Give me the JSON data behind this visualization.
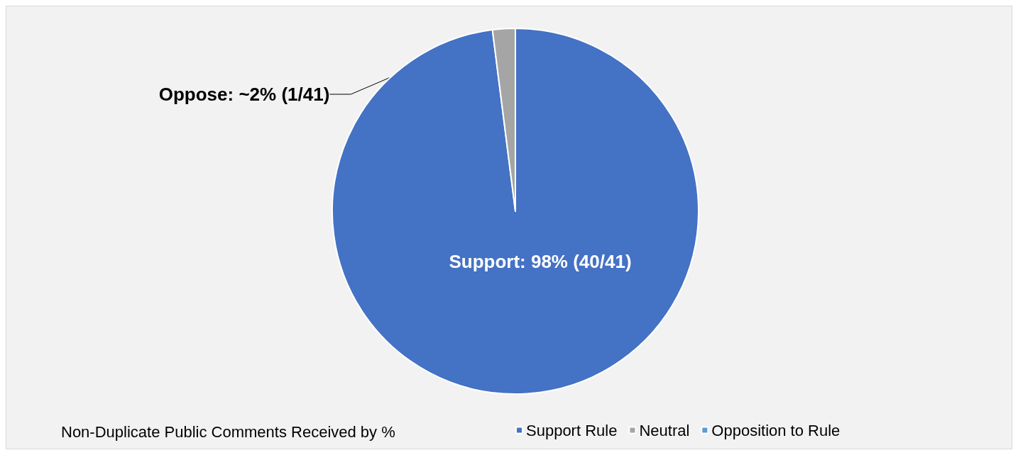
{
  "chart_data": {
    "type": "pie",
    "legend_title": "Non-Duplicate Public Comments Received by %",
    "categories": [
      "Support Rule",
      "Neutral",
      "Opposition to Rule"
    ],
    "values": [
      98,
      2,
      0
    ],
    "colors": [
      "#4472c4",
      "#a5a5a5",
      "#5b9bd5"
    ],
    "value_labels": [
      "Support: 98% (40/41)",
      "Oppose: ~2% (1/41)",
      null
    ],
    "legend": "bottom"
  }
}
